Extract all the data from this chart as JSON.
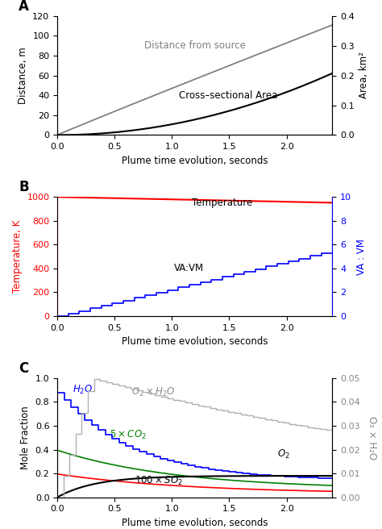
{
  "panel_A": {
    "title": "A",
    "xlabel": "Plume time evolution, seconds",
    "ylabel_left": "Distance, m",
    "ylabel_right": "Area, km²",
    "xlim": [
      0,
      2.4
    ],
    "ylim_left": [
      0,
      120
    ],
    "ylim_right": [
      0.0,
      0.4
    ],
    "yticks_left": [
      0,
      20,
      40,
      60,
      80,
      100,
      120
    ],
    "yticks_right": [
      0.0,
      0.1,
      0.2,
      0.3,
      0.4
    ],
    "xticks": [
      0.0,
      0.5,
      1.0,
      1.5,
      2.0
    ]
  },
  "panel_B": {
    "title": "B",
    "xlabel": "Plume time evolution, seconds",
    "ylabel_left": "Temperature, K",
    "ylabel_right": "VA : VM",
    "xlim": [
      0,
      2.4
    ],
    "ylim_left": [
      0,
      1000
    ],
    "ylim_right": [
      0,
      10
    ],
    "yticks_left": [
      0,
      200,
      400,
      600,
      800,
      1000
    ],
    "yticks_right": [
      0,
      2,
      4,
      6,
      8,
      10
    ],
    "xticks": [
      0.0,
      0.5,
      1.0,
      1.5,
      2.0
    ]
  },
  "panel_C": {
    "title": "C",
    "xlabel": "Plume time evolution, seconds",
    "ylabel_left": "Mole Fraction",
    "ylabel_right": "O₂ × H₂O",
    "xlim": [
      0,
      2.4
    ],
    "ylim_left": [
      0.0,
      1.0
    ],
    "ylim_right": [
      0.0,
      0.05
    ],
    "yticks_left": [
      0.0,
      0.2,
      0.4,
      0.6,
      0.8,
      1.0
    ],
    "yticks_right": [
      0.0,
      0.01,
      0.02,
      0.03,
      0.04,
      0.05
    ],
    "xticks": [
      0.0,
      0.5,
      1.0,
      1.5,
      2.0
    ]
  }
}
